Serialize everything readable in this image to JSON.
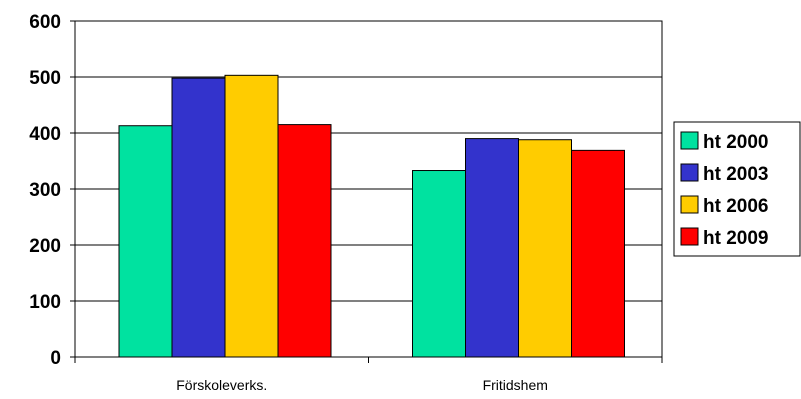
{
  "chart_data": {
    "type": "bar",
    "title": "",
    "xlabel": "",
    "ylabel": "",
    "ylim": [
      0,
      600
    ],
    "yticks": [
      "0",
      "100",
      "200",
      "300",
      "400",
      "500",
      "600"
    ],
    "grid": true,
    "legend_position": "right",
    "categories": [
      "Förskoleverks.",
      "Fritidshem"
    ],
    "series": [
      {
        "name": "ht 2000",
        "color": "#00e2a0",
        "values": [
          413,
          333
        ]
      },
      {
        "name": "ht 2003",
        "color": "#3333cc",
        "values": [
          498,
          390
        ]
      },
      {
        "name": "ht 2006",
        "color": "#ffcc00",
        "values": [
          503,
          388
        ]
      },
      {
        "name": "ht 2009",
        "color": "#ff0000",
        "values": [
          415,
          369
        ]
      }
    ]
  }
}
